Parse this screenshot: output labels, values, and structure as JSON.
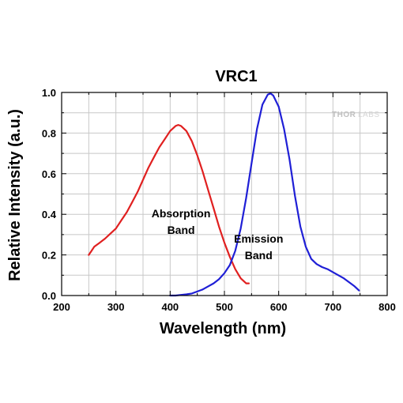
{
  "logo": {
    "brand": "THORLABS"
  },
  "chart_data": {
    "type": "line",
    "title": "VRC1",
    "xlabel": "Wavelength (nm)",
    "ylabel": "Relative Intensity (a.u.)",
    "xlim": [
      200,
      800
    ],
    "ylim": [
      0,
      1.0
    ],
    "x_ticks": [
      200,
      300,
      400,
      500,
      600,
      700,
      800
    ],
    "y_ticks": [
      0.0,
      0.2,
      0.4,
      0.6,
      0.8,
      1.0
    ],
    "x_tick_labels": [
      "200",
      "300",
      "400",
      "500",
      "600",
      "700",
      "800"
    ],
    "y_tick_labels": [
      "0.0",
      "0.2",
      "0.4",
      "0.6",
      "0.8",
      "1.0"
    ],
    "grid": true,
    "series": [
      {
        "color": "#e02020",
        "x": [
          250,
          255,
          260,
          270,
          280,
          290,
          300,
          310,
          320,
          330,
          340,
          350,
          360,
          370,
          380,
          390,
          400,
          410,
          415,
          420,
          430,
          440,
          450,
          460,
          470,
          480,
          490,
          500,
          510,
          520,
          530,
          540,
          545
        ],
        "y": [
          0.2,
          0.22,
          0.24,
          0.26,
          0.28,
          0.305,
          0.33,
          0.37,
          0.41,
          0.46,
          0.51,
          0.57,
          0.63,
          0.68,
          0.73,
          0.77,
          0.81,
          0.835,
          0.84,
          0.835,
          0.81,
          0.76,
          0.69,
          0.61,
          0.52,
          0.43,
          0.34,
          0.26,
          0.19,
          0.13,
          0.085,
          0.06,
          0.06
        ]
      },
      {
        "color": "#1f1fd6",
        "x": [
          400,
          410,
          420,
          430,
          440,
          450,
          460,
          470,
          480,
          490,
          500,
          510,
          520,
          530,
          540,
          550,
          560,
          570,
          580,
          585,
          590,
          600,
          610,
          620,
          630,
          640,
          650,
          660,
          670,
          680,
          690,
          700,
          710,
          720,
          730,
          740,
          748
        ],
        "y": [
          0.0,
          0.0,
          0.003,
          0.006,
          0.01,
          0.02,
          0.03,
          0.045,
          0.06,
          0.08,
          0.11,
          0.15,
          0.22,
          0.33,
          0.48,
          0.65,
          0.82,
          0.94,
          0.99,
          0.995,
          0.985,
          0.93,
          0.82,
          0.67,
          0.49,
          0.34,
          0.24,
          0.18,
          0.155,
          0.14,
          0.13,
          0.115,
          0.1,
          0.085,
          0.065,
          0.045,
          0.025
        ]
      }
    ],
    "annotations": [
      {
        "lines": [
          "Absorption",
          "Band"
        ],
        "x": 420,
        "y": 0.385
      },
      {
        "lines": [
          "Emission",
          "Band"
        ],
        "x": 563,
        "y": 0.26
      }
    ]
  }
}
